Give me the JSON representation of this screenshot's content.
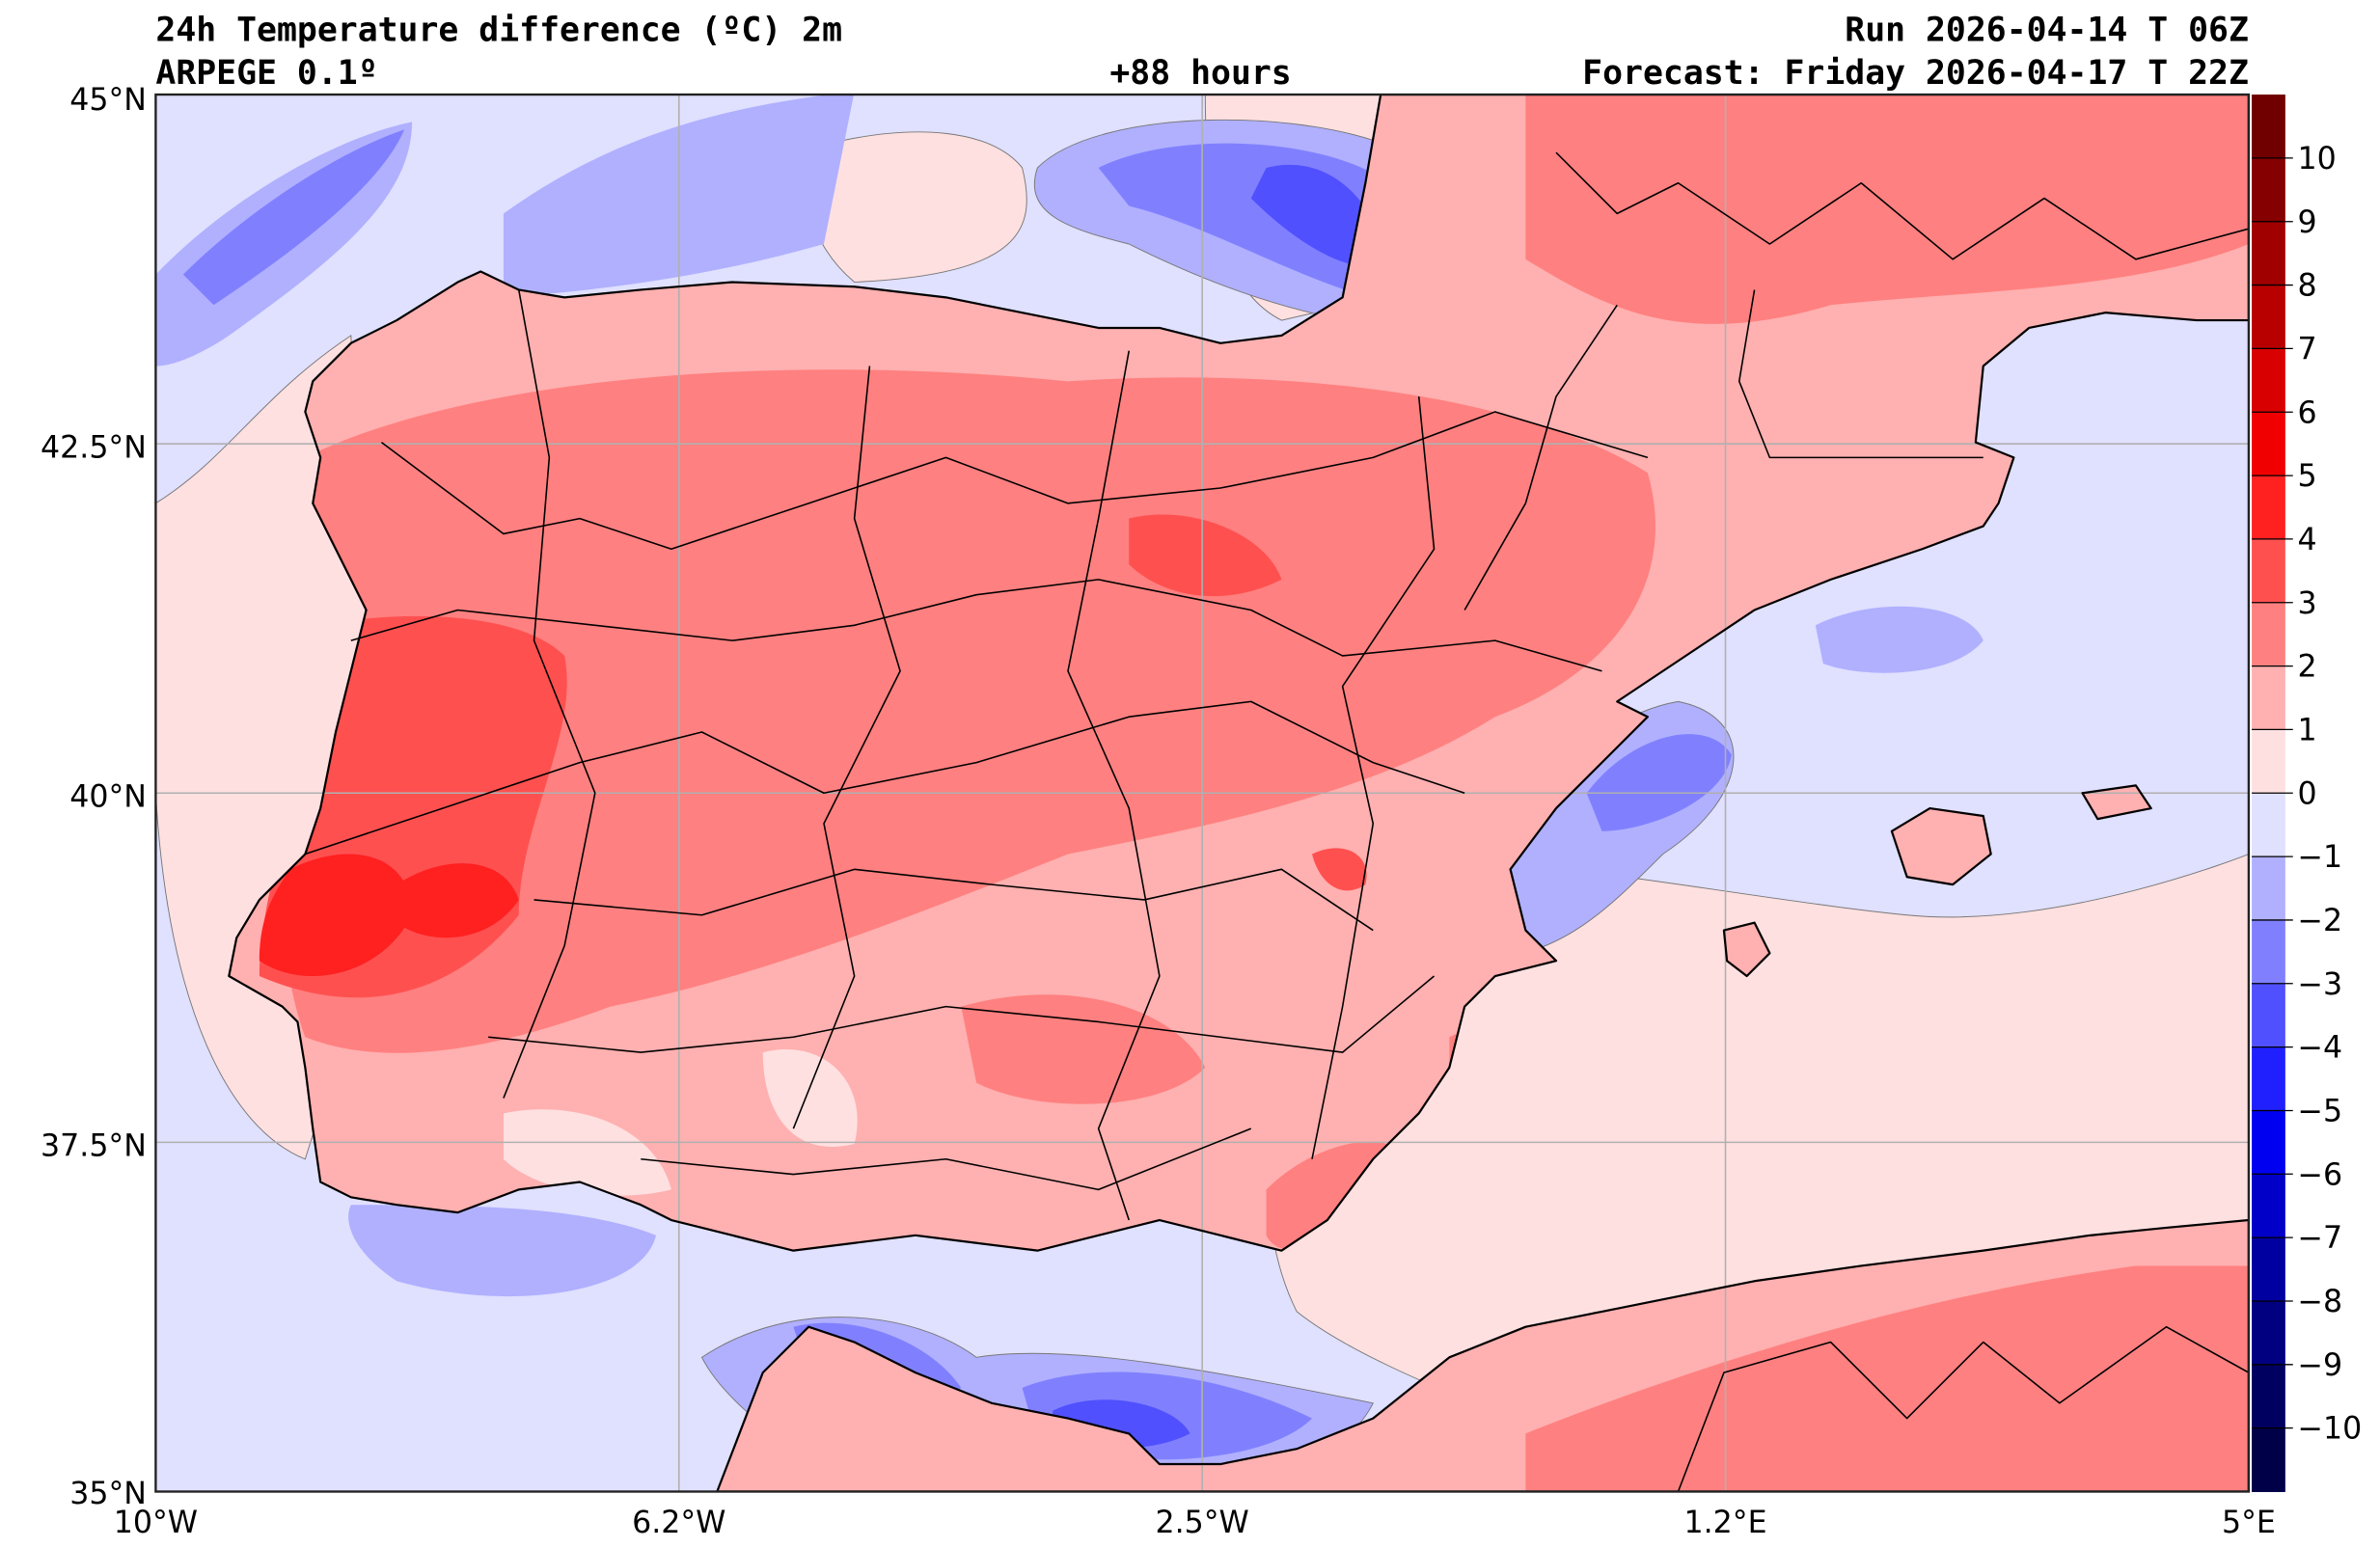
{
  "header": {
    "title": "24h Temperature difference (ºC) 2m",
    "model": "ARPEGE 0.1º",
    "lead_time": "+88 hours",
    "run": "Run 2026-04-14 T 06Z",
    "forecast": "Forecast: Friday 2026-04-17 T 22Z"
  },
  "axes": {
    "lat_labels": [
      "45°N",
      "42.5°N",
      "40°N",
      "37.5°N",
      "35°N"
    ],
    "lon_labels": [
      "10°W",
      "6.2°W",
      "2.5°W",
      "1.2°E",
      "5°E"
    ]
  },
  "colorbar": {
    "ticks": [
      "10",
      "9",
      "8",
      "7",
      "6",
      "5",
      "4",
      "3",
      "2",
      "1",
      "0",
      "−1",
      "−2",
      "−3",
      "−4",
      "−5",
      "−6",
      "−7",
      "−8",
      "−9",
      "−10"
    ],
    "tick_values": [
      10,
      9,
      8,
      7,
      6,
      5,
      4,
      3,
      2,
      1,
      0,
      -1,
      -2,
      -3,
      -4,
      -5,
      -6,
      -7,
      -8,
      -9,
      -10
    ],
    "colors": [
      "#700000",
      "#850000",
      "#a00000",
      "#b80000",
      "#d80000",
      "#f00000",
      "#ff2020",
      "#ff5050",
      "#ff8080",
      "#ffb0b0",
      "#ffe0e0",
      "#e0e0ff",
      "#b0b0ff",
      "#8080ff",
      "#5050ff",
      "#2020ff",
      "#0000f0",
      "#0000c8",
      "#0000a0",
      "#000080",
      "#000060",
      "#000048"
    ],
    "range": [
      -11,
      11
    ]
  }
}
